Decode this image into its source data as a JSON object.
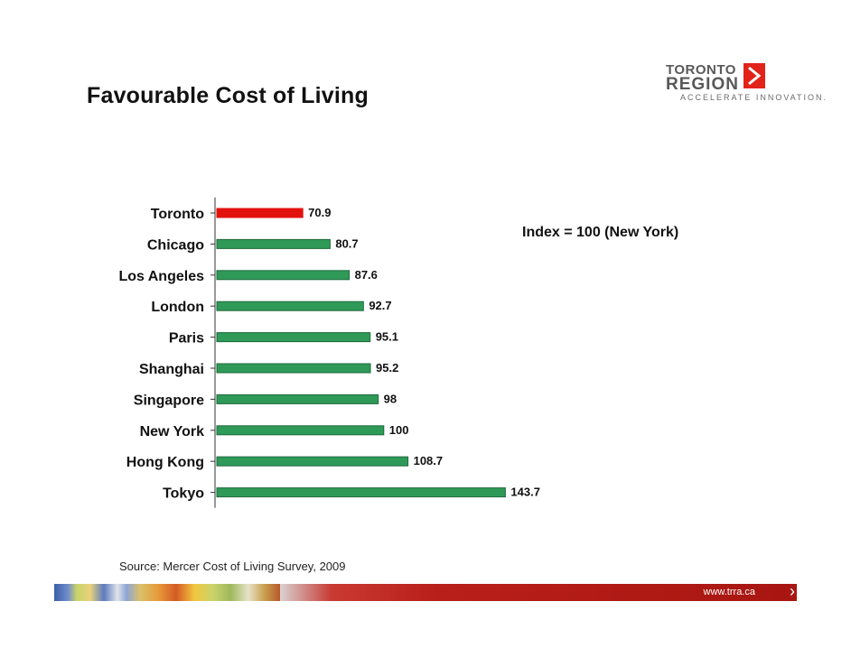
{
  "slide": {
    "title": "Favourable Cost of Living",
    "annotation": "Index = 100 (New York)",
    "source": "Source: Mercer Cost of Living Survey, 2009"
  },
  "logo": {
    "line1": "TORONTO",
    "line2": "REGION",
    "tagline": "ACCELERATE INNOVATION.",
    "arrow_icon": "chevron-right-icon"
  },
  "footer": {
    "url": "www.trra.ca",
    "arrow_icon": "chevron-right-icon"
  },
  "colors": {
    "highlight_bar": "#e2120f",
    "bar": "#2f9a58",
    "bar_border": "#1e6a3b",
    "brand_red": "#e2231a"
  },
  "chart_data": {
    "type": "bar",
    "orientation": "horizontal",
    "categories": [
      "Toronto",
      "Chicago",
      "Los Angeles",
      "London",
      "Paris",
      "Shanghai",
      "Singapore",
      "New York",
      "Hong Kong",
      "Tokyo"
    ],
    "values": [
      70.9,
      80.7,
      87.6,
      92.7,
      95.1,
      95.2,
      98,
      100,
      108.7,
      143.7
    ],
    "data_labels": [
      "70.9",
      "80.7",
      "87.6",
      "92.7",
      "95.1",
      "95.2",
      "98",
      "100",
      "108.7",
      "143.7"
    ],
    "highlight_category": "Toronto",
    "xlim": [
      40,
      145
    ],
    "grid": false,
    "legend": "none"
  }
}
